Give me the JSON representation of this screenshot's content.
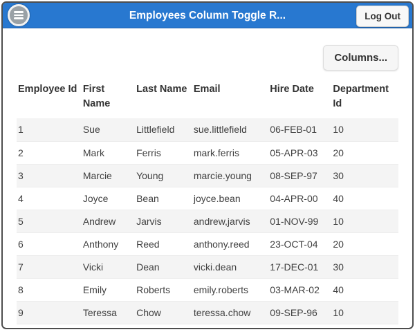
{
  "colors": {
    "header-bg": "#2878d0",
    "frame-border": "#4d4d4d",
    "stripe": "#f4f4f4"
  },
  "header": {
    "title": "Employees Column Toggle R...",
    "menu_icon": "hamburger-icon",
    "logout_label": "Log Out"
  },
  "toolbar": {
    "columns_button_label": "Columns..."
  },
  "table": {
    "columns": [
      "Employee Id",
      "First Name",
      "Last Name",
      "Email",
      "Hire Date",
      "Department Id"
    ],
    "rows": [
      [
        "1",
        "Sue",
        "Littlefield",
        "sue.littlefield",
        "06-FEB-01",
        "10"
      ],
      [
        "2",
        "Mark",
        "Ferris",
        "mark.ferris",
        "05-APR-03",
        "20"
      ],
      [
        "3",
        "Marcie",
        "Young",
        "marcie.young",
        "08-SEP-97",
        "30"
      ],
      [
        "4",
        "Joyce",
        "Bean",
        "joyce.bean",
        "04-APR-00",
        "40"
      ],
      [
        "5",
        "Andrew",
        "Jarvis",
        "andrew,jarvis",
        "01-NOV-99",
        "10"
      ],
      [
        "6",
        "Anthony",
        "Reed",
        "anthony.reed",
        "23-OCT-04",
        "20"
      ],
      [
        "7",
        "Vicki",
        "Dean",
        "vicki.dean",
        "17-DEC-01",
        "30"
      ],
      [
        "8",
        "Emily",
        "Roberts",
        "emily.roberts",
        "03-MAR-02",
        "40"
      ],
      [
        "9",
        "Teressa",
        "Chow",
        "teressa.chow",
        "09-SEP-96",
        "10"
      ]
    ]
  }
}
